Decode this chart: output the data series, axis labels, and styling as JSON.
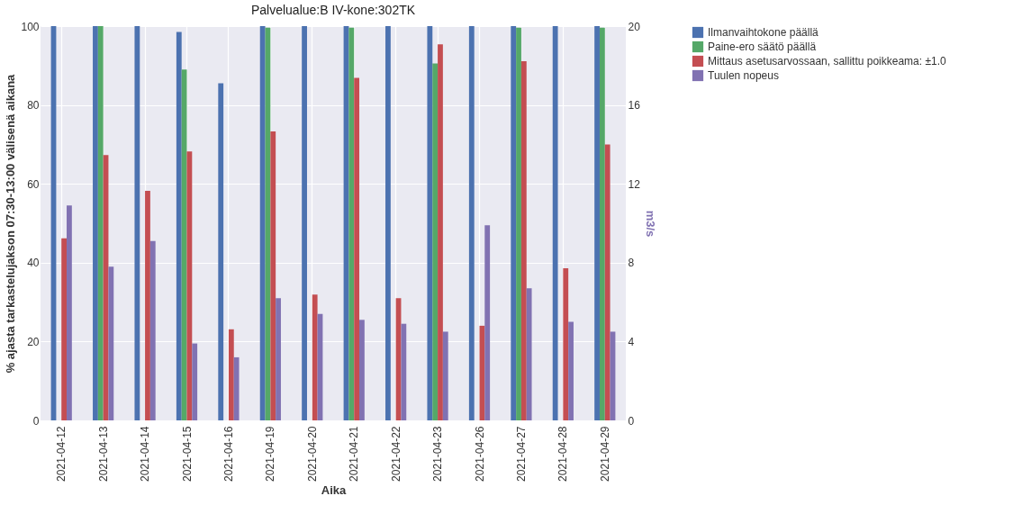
{
  "chart_data": {
    "type": "bar",
    "title": "Palvelualue:B IV-kone:302TK",
    "xlabel": "Aika",
    "ylabel": "% ajasta tarkastelujakson 07:30-13:00 välisenä aikana",
    "y2label": "m3/s",
    "categories": [
      "2021-04-12",
      "2021-04-13",
      "2021-04-14",
      "2021-04-15",
      "2021-04-16",
      "2021-04-19",
      "2021-04-20",
      "2021-04-21",
      "2021-04-22",
      "2021-04-23",
      "2021-04-26",
      "2021-04-27",
      "2021-04-28",
      "2021-04-29"
    ],
    "series": [
      {
        "name": "Ilmanvaihtokone päällä",
        "color": "#4c72b0",
        "values": [
          100,
          100,
          100,
          98.5,
          85.5,
          100,
          100,
          100,
          100,
          100,
          100,
          100,
          100,
          100
        ]
      },
      {
        "name": "Paine-ero säätö päällä",
        "color": "#55a868",
        "values": [
          0,
          100,
          0,
          89,
          0,
          99.6,
          0,
          99.6,
          0,
          90.5,
          0,
          99.6,
          0,
          99.6
        ]
      },
      {
        "name": "Mittaus asetusarvossaan, sallittu poikkeama: ±1.0",
        "color": "#c44e52",
        "values": [
          46.2,
          67.3,
          58.2,
          68.2,
          23.1,
          73.3,
          31.9,
          86.9,
          31,
          95.4,
          24,
          91.1,
          38.6,
          70
        ]
      },
      {
        "name": "Tuulen nopeus",
        "color": "#8172b2",
        "axis": "y2",
        "values": [
          10.9,
          7.8,
          9.1,
          3.9,
          3.2,
          6.2,
          5.4,
          5.1,
          4.9,
          4.5,
          9.9,
          6.7,
          5,
          4.5
        ]
      }
    ],
    "ylim": [
      0,
      100
    ],
    "yticks": [
      0,
      20,
      40,
      60,
      80,
      100
    ],
    "y2lim": [
      0,
      20
    ],
    "y2ticks": [
      0,
      4,
      8,
      12,
      16,
      20
    ],
    "grid": true,
    "legend": "top right"
  }
}
